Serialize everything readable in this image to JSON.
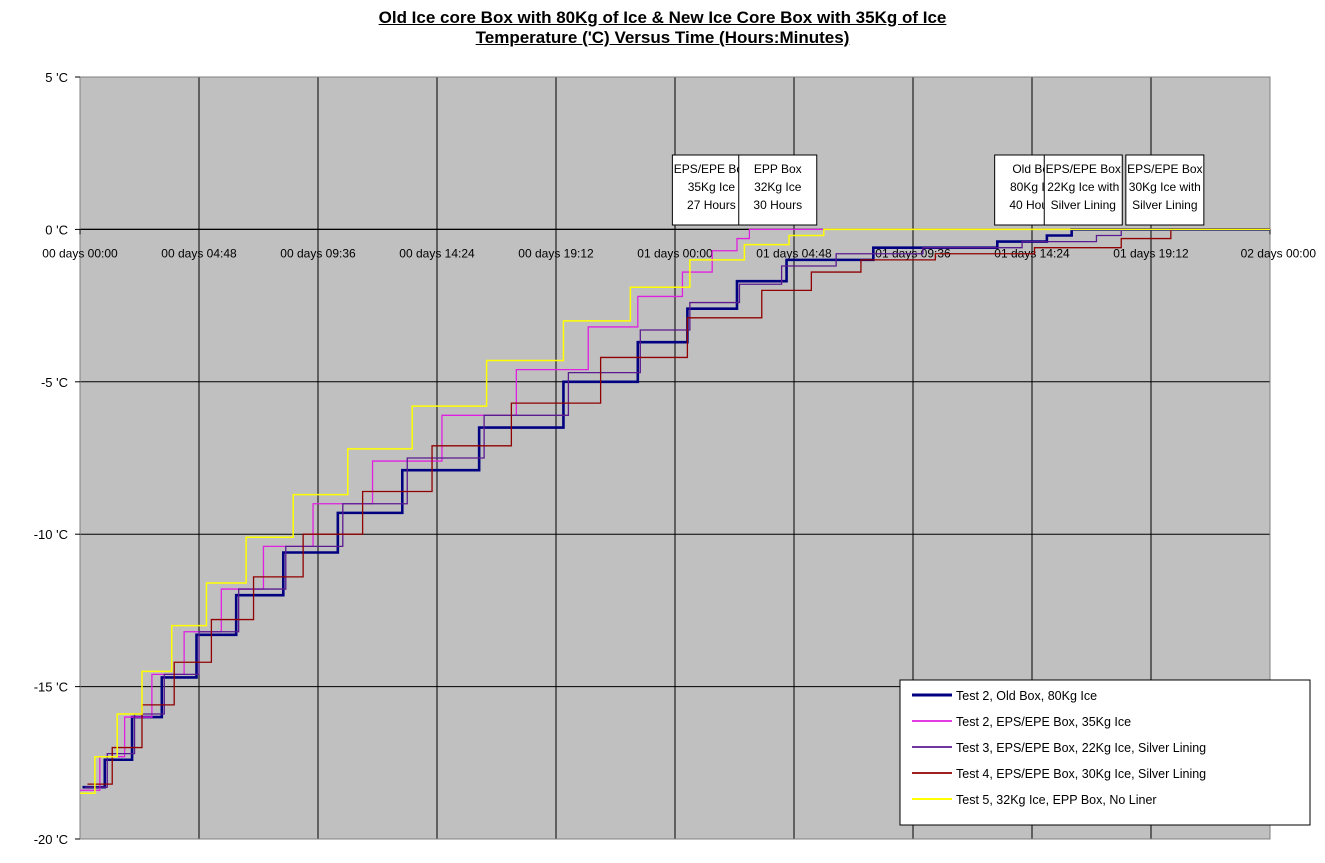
{
  "chart_data": {
    "type": "line",
    "title": "Old Ice core Box with 80Kg of Ice & New Ice Core Box with 35Kg of Ice",
    "subtitle": "Temperature ('C) Versus Time (Hours:Minutes)",
    "xlabel": "",
    "ylabel": "",
    "x_unit": "hours",
    "xlim": [
      0,
      48
    ],
    "ylim": [
      -20,
      5
    ],
    "grid": true,
    "legend_position": "bottom-right",
    "y_ticks": [
      {
        "value": 5,
        "label": "5 'C"
      },
      {
        "value": 0,
        "label": "0 'C"
      },
      {
        "value": -5,
        "label": "-5 'C"
      },
      {
        "value": -10,
        "label": "-10 'C"
      },
      {
        "value": -15,
        "label": "-15 'C"
      },
      {
        "value": -20,
        "label": "-20 'C"
      }
    ],
    "x_ticks": [
      {
        "value": 0,
        "label": "00 days 00:00"
      },
      {
        "value": 4.8,
        "label": "00 days 04:48"
      },
      {
        "value": 9.6,
        "label": "00 days 09:36"
      },
      {
        "value": 14.4,
        "label": "00 days 14:24"
      },
      {
        "value": 19.2,
        "label": "00 days 19:12"
      },
      {
        "value": 24,
        "label": "01 days 00:00"
      },
      {
        "value": 28.8,
        "label": "01 days 04:48"
      },
      {
        "value": 33.6,
        "label": "01 days 09:36"
      },
      {
        "value": 38.4,
        "label": "01 days 14:24"
      },
      {
        "value": 43.2,
        "label": "01 days 19:12"
      },
      {
        "value": 48,
        "label": "02 days 00:00"
      }
    ],
    "series": [
      {
        "name": "Test 2, Old Box, 80Kg Ice",
        "color": "#000080",
        "width": 2.6,
        "x": [
          0.1,
          1.0,
          2.1,
          3.3,
          4.7,
          6.3,
          8.2,
          10.4,
          13.0,
          16.1,
          19.5,
          22.5,
          24.5,
          26.5,
          28.5,
          32.0,
          37.0,
          39.0,
          40.0
        ],
        "y": [
          -18.3,
          -17.4,
          -16.0,
          -14.7,
          -13.3,
          -12.0,
          -10.6,
          -9.3,
          -7.9,
          -6.5,
          -5.0,
          -3.7,
          -2.6,
          -1.7,
          -1.0,
          -0.6,
          -0.4,
          -0.2,
          0.0
        ]
      },
      {
        "name": "Test 2, EPS/EPE Box, 35Kg Ice",
        "color": "#e020e0",
        "width": 1.3,
        "x": [
          0.0,
          0.8,
          1.8,
          2.9,
          4.2,
          5.7,
          7.4,
          9.4,
          11.8,
          14.6,
          17.6,
          20.5,
          22.5,
          24.3,
          25.5,
          26.5,
          27.0
        ],
        "y": [
          -18.4,
          -17.3,
          -16.0,
          -14.6,
          -13.2,
          -11.8,
          -10.4,
          -9.0,
          -7.6,
          -6.1,
          -4.6,
          -3.2,
          -2.2,
          -1.4,
          -0.7,
          -0.3,
          0.0
        ]
      },
      {
        "name": "Test 3, EPS/EPE Box, 22Kg Ice, Silver Lining",
        "color": "#5a1a90",
        "width": 1.3,
        "x": [
          0.2,
          1.1,
          2.2,
          3.4,
          4.8,
          6.4,
          8.3,
          10.6,
          13.2,
          16.3,
          19.7,
          22.6,
          24.6,
          26.6,
          28.3,
          30.5,
          34.0,
          38.0,
          41.0,
          42.0
        ],
        "y": [
          -18.3,
          -17.2,
          -15.9,
          -14.6,
          -13.2,
          -11.8,
          -10.4,
          -9.0,
          -7.5,
          -6.1,
          -4.7,
          -3.3,
          -2.4,
          -1.8,
          -1.2,
          -0.8,
          -0.6,
          -0.4,
          -0.2,
          0.0
        ]
      },
      {
        "name": "Test 4, EPS/EPE Box, 30Kg Ice, Silver Lining",
        "color": "#900000",
        "width": 1.3,
        "x": [
          0.3,
          1.3,
          2.5,
          3.8,
          5.3,
          7.0,
          9.0,
          11.4,
          14.2,
          17.4,
          21.0,
          24.5,
          27.5,
          29.5,
          31.5,
          34.5,
          38.5,
          42.0,
          44.0
        ],
        "y": [
          -18.2,
          -17.0,
          -15.6,
          -14.2,
          -12.8,
          -11.4,
          -10.0,
          -8.6,
          -7.1,
          -5.7,
          -4.2,
          -2.9,
          -2.0,
          -1.4,
          -1.0,
          -0.8,
          -0.6,
          -0.3,
          0.0
        ]
      },
      {
        "name": "Test 5, 32Kg Ice, EPP Box, No Liner",
        "color": "#ffff00",
        "width": 1.5,
        "x": [
          0.0,
          0.6,
          1.5,
          2.5,
          3.7,
          5.1,
          6.7,
          8.6,
          10.8,
          13.4,
          16.4,
          19.5,
          22.2,
          24.6,
          26.8,
          28.6,
          30.0,
          33.0,
          40.0,
          48.0
        ],
        "y": [
          -18.5,
          -17.3,
          -15.9,
          -14.5,
          -13.0,
          -11.6,
          -10.1,
          -8.7,
          -7.2,
          -5.8,
          -4.3,
          -3.0,
          -1.9,
          -1.0,
          -0.5,
          -0.2,
          0.0,
          0.0,
          0.0,
          0.0
        ]
      }
    ],
    "annotations": [
      {
        "lines": [
          "EPS/EPE Box",
          "35Kg Ice",
          "27 Hours"
        ],
        "x": 27.0
      },
      {
        "lines": [
          "EPP Box",
          "32Kg Ice",
          "30 Hours"
        ],
        "x": 30.0
      },
      {
        "lines": [
          "Old Box",
          "80Kg Ice",
          "40 Hours"
        ],
        "x": 40.0
      },
      {
        "lines": [
          "EPS/EPE Box",
          "22Kg Ice with",
          "Silver Lining"
        ],
        "x": 42.0
      },
      {
        "lines": [
          "EPS/EPE Box",
          "30Kg Ice with",
          "Silver Lining"
        ],
        "x": 44.0
      }
    ]
  }
}
